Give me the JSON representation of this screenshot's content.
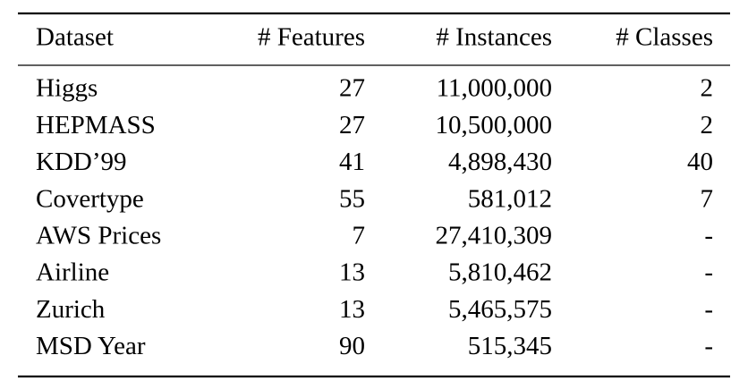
{
  "table": {
    "header": [
      "Dataset",
      "# Features",
      "# Instances",
      "# Classes"
    ],
    "rows": [
      [
        "Higgs",
        "27",
        "11,000,000",
        "2"
      ],
      [
        "HEPMASS",
        "27",
        "10,500,000",
        "2"
      ],
      [
        "KDD’99",
        "41",
        "4,898,430",
        "40"
      ],
      [
        "Covertype",
        "55",
        "581,012",
        "7"
      ],
      [
        "AWS Prices",
        "7",
        "27,410,309",
        "-"
      ],
      [
        "Airline",
        "13",
        "5,810,462",
        "-"
      ],
      [
        "Zurich",
        "13",
        "5,465,575",
        "-"
      ],
      [
        "MSD Year",
        "90",
        "515,345",
        "-"
      ]
    ]
  }
}
